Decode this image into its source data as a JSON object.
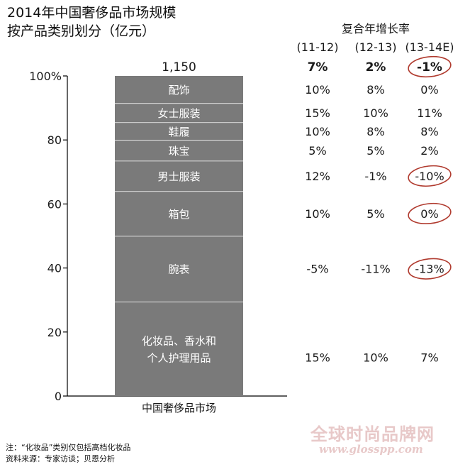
{
  "title_line1": "2014年中国奢侈品市场规模",
  "title_line2": "按产品类别划分（亿元）",
  "footnote_line1": "注：“化妆品”类别仅包括高档化妆品",
  "footnote_line2": "资料来源：专家访谈；贝恩分析",
  "watermark_cn": "全球时尚品牌网",
  "watermark_url": "www.glosspp.com",
  "colors": {
    "bar_fill": "#7a7a7a",
    "segment_divider": "#ffffff",
    "axis": "#000000",
    "highlight_circle": "#b03a2e",
    "text": "#1a1a1a"
  },
  "chart_data": {
    "type": "bar",
    "stacking": "stacked-100",
    "title": "2014年中国奢侈品市场规模 按产品类别划分（亿元）",
    "category": "中国奢侈品市场",
    "total_label": "1,150",
    "y_ticks": [
      "0",
      "20",
      "40",
      "60",
      "80",
      "100%"
    ],
    "ylim": [
      0,
      100
    ],
    "segments": [
      {
        "name": "化妆品、香水和\n个人护理用品",
        "share": 29.5
      },
      {
        "name": "腕表",
        "share": 20.5
      },
      {
        "name": "箱包",
        "share": 14.0
      },
      {
        "name": "男士服装",
        "share": 9.5
      },
      {
        "name": "珠宝",
        "share": 6.5
      },
      {
        "name": "鞋履",
        "share": 5.5
      },
      {
        "name": "女士服装",
        "share": 6.0
      },
      {
        "name": "配饰",
        "share": 8.5
      }
    ],
    "cagr_table": {
      "header": "复合年增长率",
      "periods": [
        "(11-12)",
        "(12-13)",
        "(13-14E)"
      ],
      "total_row": [
        "7%",
        "2%",
        "-1%"
      ],
      "rows": [
        {
          "category": "配饰",
          "values": [
            "10%",
            "8%",
            "0%"
          ]
        },
        {
          "category": "女士服装",
          "values": [
            "15%",
            "10%",
            "11%"
          ]
        },
        {
          "category": "鞋履",
          "values": [
            "10%",
            "8%",
            "8%"
          ]
        },
        {
          "category": "珠宝",
          "values": [
            "5%",
            "5%",
            "2%"
          ]
        },
        {
          "category": "男士服装",
          "values": [
            "12%",
            "-1%",
            "-10%"
          ]
        },
        {
          "category": "箱包",
          "values": [
            "10%",
            "5%",
            "0%"
          ]
        },
        {
          "category": "腕表",
          "values": [
            "-5%",
            "-11%",
            "-13%"
          ]
        },
        {
          "category": "化妆品、香水和\n个人护理用品",
          "values": [
            "15%",
            "10%",
            "7%"
          ]
        }
      ],
      "circled": [
        {
          "row": "total",
          "col": 2
        },
        {
          "row": 4,
          "col": 2
        },
        {
          "row": 5,
          "col": 2
        },
        {
          "row": 6,
          "col": 2
        }
      ]
    }
  }
}
